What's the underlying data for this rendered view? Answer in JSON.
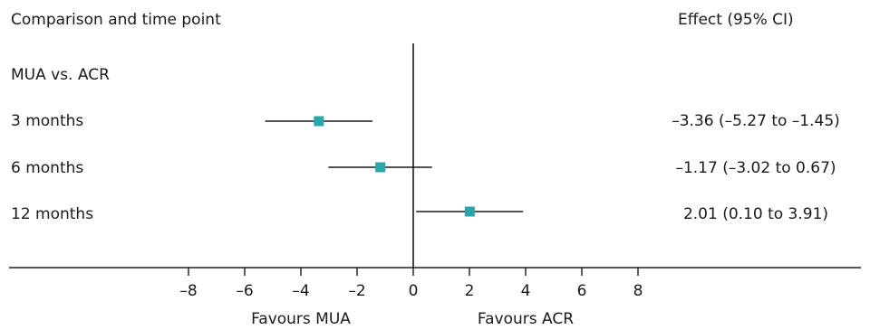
{
  "header": {
    "left": "Comparison and time point",
    "right": "Effect (95% CI)"
  },
  "chart_data": {
    "type": "forest",
    "group_label": "MUA vs. ACR",
    "rows": [
      {
        "label": "3 months",
        "estimate": -3.36,
        "lower": -5.27,
        "upper": -1.45,
        "effect_text": "–3.36 (–5.27 to –1.45)"
      },
      {
        "label": "6 months",
        "estimate": -1.17,
        "lower": -3.02,
        "upper": 0.67,
        "effect_text": "–1.17 (–3.02 to 0.67)"
      },
      {
        "label": "12 months",
        "estimate": 2.01,
        "lower": 0.1,
        "upper": 3.91,
        "effect_text": "2.01 (0.10 to 3.91)"
      }
    ],
    "x_ticks": [
      -8,
      -6,
      -4,
      -2,
      0,
      2,
      4,
      6,
      8
    ],
    "x_tick_labels": [
      "–8",
      "–6",
      "–4",
      "–2",
      "0",
      "2",
      "4",
      "6",
      "8"
    ],
    "xlim": [
      -8,
      8
    ],
    "null_value": 0,
    "favours_left": "Favours MUA",
    "favours_right": "Favours ACR",
    "marker_color": "#2aa5a8",
    "line_color": "#1a1a1a"
  }
}
